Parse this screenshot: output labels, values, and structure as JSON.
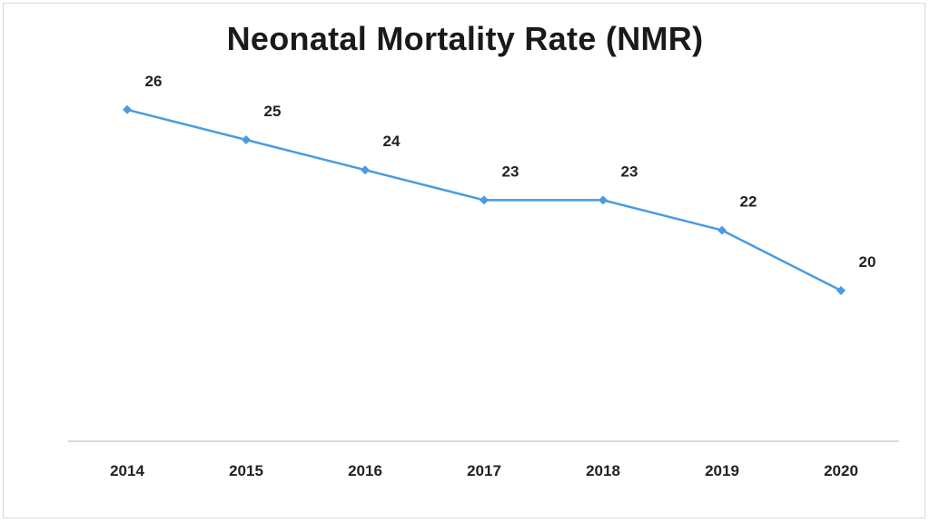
{
  "chart_data": {
    "type": "line",
    "title": "Neonatal Mortality Rate (NMR)",
    "categories": [
      "2014",
      "2015",
      "2016",
      "2017",
      "2018",
      "2019",
      "2020"
    ],
    "series": [
      {
        "values": [
          26,
          25,
          24,
          23,
          23,
          22,
          20
        ],
        "color": "#4a9be0"
      }
    ],
    "data_labels": [
      "26",
      "25",
      "24",
      "23",
      "23",
      "22",
      "20"
    ],
    "ylim": [
      15,
      27.5
    ],
    "grid": false,
    "legend": "none"
  }
}
